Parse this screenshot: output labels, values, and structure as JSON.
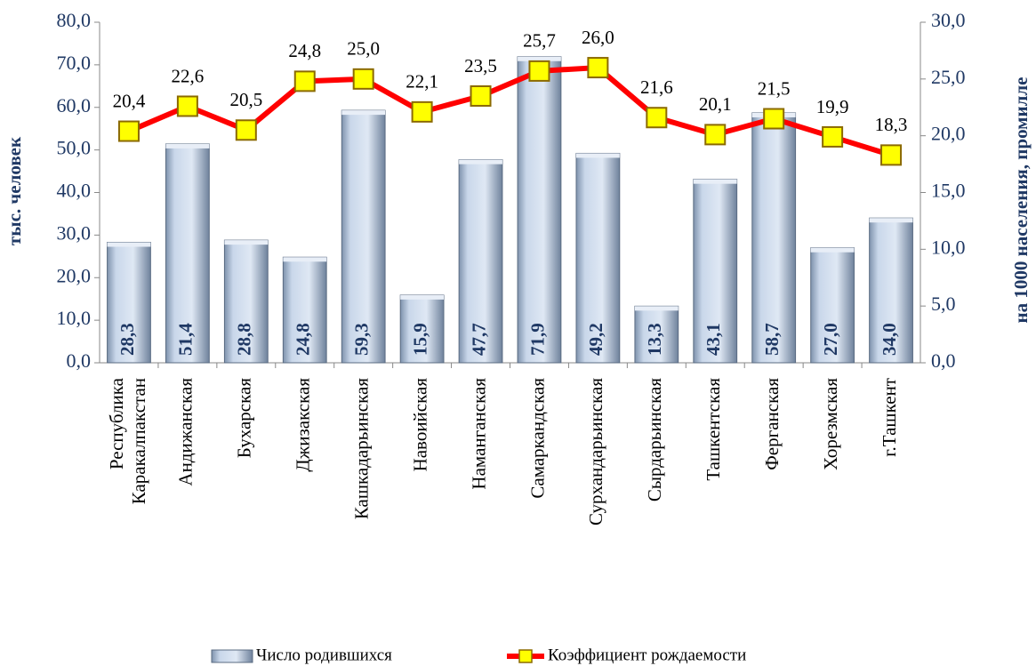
{
  "chart_data": {
    "type": "bar-line",
    "y_label": "тыс. человек",
    "y2_label": "на 1000 населения, промилле",
    "categories": [
      "Республика Каракалпакстан",
      "Андижанская",
      "Бухарская",
      "Джизакская",
      "Кашкадарьинская",
      "Навоийская",
      "Наманганская",
      "Самаркандская",
      "Сурхандарьинская",
      "Сырдарьинская",
      "Ташкентская",
      "Ферганская",
      "Хорезмская",
      "г.Ташкент"
    ],
    "series": [
      {
        "name": "Число родившихся",
        "type": "bar",
        "color": "#c3d3e8",
        "values": [
          28.3,
          51.4,
          28.8,
          24.8,
          59.3,
          15.9,
          47.7,
          71.9,
          49.2,
          13.3,
          43.1,
          58.7,
          27.0,
          34.0
        ],
        "value_labels": [
          "28,3",
          "51,4",
          "28,8",
          "24,8",
          "59,3",
          "15,9",
          "47,7",
          "71,9",
          "49,2",
          "13,3",
          "43,1",
          "58,7",
          "27,0",
          "34,0"
        ]
      },
      {
        "name": "Коэффициент рождаемости",
        "type": "line",
        "axis": "y2",
        "color": "#ff0000",
        "marker_color": "#ffff00",
        "values": [
          20.4,
          22.6,
          20.5,
          24.8,
          25.0,
          22.1,
          23.5,
          25.7,
          26.0,
          21.6,
          20.1,
          21.5,
          19.9,
          18.3
        ],
        "value_labels": [
          "20,4",
          "22,6",
          "20,5",
          "24,8",
          "25,0",
          "22,1",
          "23,5",
          "25,7",
          "26,0",
          "21,6",
          "20,1",
          "21,5",
          "19,9",
          "18,3"
        ]
      }
    ],
    "ylim": [
      0,
      80
    ],
    "yticks": [
      {
        "value": 0,
        "label": "0,0"
      },
      {
        "value": 10,
        "label": "10,0"
      },
      {
        "value": 20,
        "label": "20,0"
      },
      {
        "value": 30,
        "label": "30,0"
      },
      {
        "value": 40,
        "label": "40,0"
      },
      {
        "value": 50,
        "label": "50,0"
      },
      {
        "value": 60,
        "label": "60,0"
      },
      {
        "value": 70,
        "label": "70,0"
      },
      {
        "value": 80,
        "label": "80,0"
      }
    ],
    "y2lim": [
      0,
      30
    ],
    "y2ticks": [
      {
        "value": 0,
        "label": "0,0"
      },
      {
        "value": 5,
        "label": "5,0"
      },
      {
        "value": 10,
        "label": "10,0"
      },
      {
        "value": 15,
        "label": "15,0"
      },
      {
        "value": 20,
        "label": "20,0"
      },
      {
        "value": 25,
        "label": "25,0"
      },
      {
        "value": 30,
        "label": "30,0"
      }
    ],
    "legend": "bottom"
  }
}
